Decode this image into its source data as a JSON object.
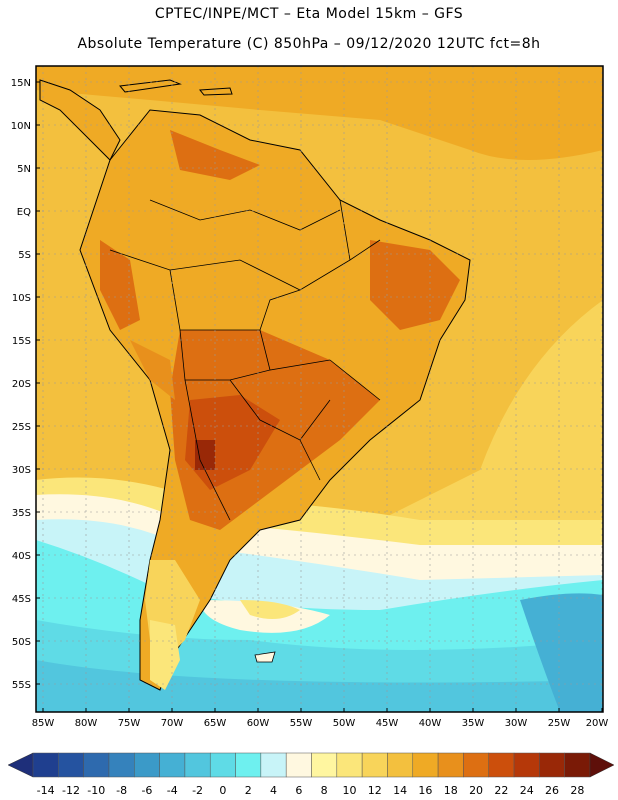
{
  "title_line1": "CPTEC/INPE/MCT –  Eta Model 15km – GFS",
  "title_line2": "Absolute Temperature (C) 850hPa – 09/12/2020 12UTC fct=8h",
  "latitude_labels": [
    "15N",
    "10N",
    "5N",
    "EQ",
    "5S",
    "10S",
    "15S",
    "20S",
    "25S",
    "30S",
    "35S",
    "40S",
    "45S",
    "50S",
    "55S"
  ],
  "longitude_labels": [
    "85W",
    "80W",
    "75W",
    "70W",
    "65W",
    "60W",
    "55W",
    "50W",
    "45W",
    "40W",
    "35W",
    "30W",
    "25W",
    "20W"
  ],
  "colorbar": {
    "labels": [
      "-14",
      "-12",
      "-10",
      "-8",
      "-6",
      "-4",
      "-2",
      "0",
      "2",
      "4",
      "6",
      "8",
      "10",
      "12",
      "14",
      "16",
      "18",
      "20",
      "22",
      "24",
      "26",
      "28"
    ],
    "colors": [
      "#1f3f8f",
      "#2553a0",
      "#2e6aae",
      "#3582bc",
      "#3b9ac8",
      "#45b0d4",
      "#52c6de",
      "#5fdbe6",
      "#6ef0ef",
      "#c8f4f8",
      "#fff8e0",
      "#fff6a0",
      "#fbe67a",
      "#f8d45a",
      "#f3c03e",
      "#efaa25",
      "#e8901c",
      "#dd6f12",
      "#cc4f0c",
      "#b53809",
      "#992807",
      "#7a1a06"
    ],
    "left_arrow_color": "#1e2f7a",
    "right_arrow_color": "#5e0f0a"
  }
}
